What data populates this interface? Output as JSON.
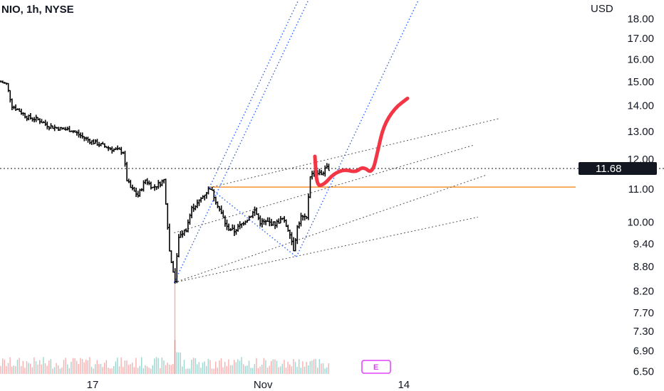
{
  "symbol": {
    "ticker": "NIO",
    "interval": "1h",
    "exchange": "NYSE"
  },
  "currency_label": "USD",
  "current_price_label": "11.68",
  "events_badge": "E",
  "colors": {
    "bar": "#000000",
    "channel": "#2962ff",
    "guide": "#555555",
    "horizontal_level": "#f57c00",
    "drawing": "#f23645",
    "price_tag_bg": "#131722",
    "volume_up": "#26a69a",
    "volume_down": "#ef5350"
  },
  "chart_data": {
    "type": "bar",
    "y_axis": {
      "scale": "log",
      "range": [
        6.4,
        19.0
      ],
      "ticks": [
        18.0,
        17.0,
        16.0,
        15.0,
        14.0,
        13.0,
        12.0,
        11.0,
        10.0,
        9.4,
        8.8,
        8.2,
        7.7,
        7.3,
        6.9,
        6.5
      ],
      "tick_labels": [
        "18.00",
        "17.00",
        "16.00",
        "15.00",
        "14.00",
        "13.00",
        "12.00",
        "11.00",
        "10.00",
        "9.40",
        "8.80",
        "8.20",
        "7.70",
        "7.30",
        "6.90",
        "6.50"
      ]
    },
    "x_axis": {
      "tick_labels": [
        "17",
        "Nov",
        "14"
      ],
      "tick_bar_index": [
        50,
        142,
        218
      ],
      "bar_count": 236
    },
    "grid": false,
    "last_price": 11.68,
    "horizontal_level": 11.07,
    "bars_keyframes": [
      [
        0,
        15.0
      ],
      [
        3,
        14.9
      ],
      [
        6,
        14.0
      ],
      [
        10,
        13.8
      ],
      [
        14,
        13.55
      ],
      [
        20,
        13.45
      ],
      [
        26,
        13.2
      ],
      [
        32,
        13.1
      ],
      [
        38,
        13.05
      ],
      [
        44,
        12.8
      ],
      [
        48,
        12.65
      ],
      [
        52,
        12.55
      ],
      [
        56,
        12.45
      ],
      [
        60,
        12.35
      ],
      [
        64,
        12.3
      ],
      [
        66,
        12.25
      ],
      [
        68,
        11.3
      ],
      [
        70,
        11.05
      ],
      [
        74,
        10.8
      ],
      [
        78,
        11.3
      ],
      [
        82,
        11.05
      ],
      [
        86,
        11.2
      ],
      [
        88,
        11.3
      ],
      [
        91,
        9.2
      ],
      [
        94,
        8.45
      ],
      [
        96,
        9.6
      ],
      [
        100,
        9.8
      ],
      [
        103,
        10.4
      ],
      [
        106,
        10.55
      ],
      [
        110,
        10.85
      ],
      [
        113,
        11.05
      ],
      [
        116,
        10.65
      ],
      [
        119,
        10.25
      ],
      [
        122,
        9.85
      ],
      [
        126,
        9.75
      ],
      [
        130,
        9.95
      ],
      [
        134,
        10.15
      ],
      [
        137,
        10.35
      ],
      [
        140,
        10.0
      ],
      [
        144,
        10.0
      ],
      [
        148,
        9.95
      ],
      [
        152,
        10.1
      ],
      [
        156,
        9.7
      ],
      [
        158,
        9.25
      ],
      [
        160,
        9.85
      ],
      [
        162,
        10.15
      ],
      [
        165,
        10.1
      ],
      [
        167,
        11.45
      ],
      [
        170,
        11.55
      ],
      [
        173,
        11.5
      ],
      [
        176,
        11.7
      ],
      [
        177,
        11.68
      ]
    ],
    "channels": {
      "lower_anchor": {
        "bar": 94,
        "price": 8.4
      },
      "upper_anchor": {
        "bar": 113,
        "price": 11.05
      },
      "low_anchor": {
        "bar": 160,
        "price": 9.05
      },
      "slope_bar": 141
    },
    "volume": {
      "max_height_fraction": 0.2,
      "spike_bar": 94
    }
  }
}
